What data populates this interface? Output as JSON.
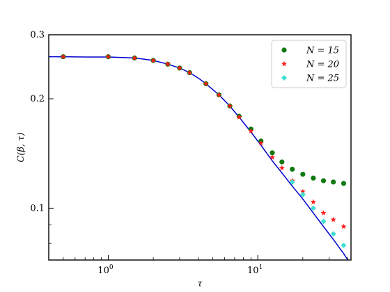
{
  "chart_data": {
    "type": "scatter",
    "xlabel": "τ",
    "ylabel": "C(β, τ)",
    "xscale": "log",
    "yscale": "log",
    "xlim": [
      0.4,
      42
    ],
    "ylim": [
      0.072,
      0.3
    ],
    "x_ticks": [
      {
        "value": 1,
        "base": "10",
        "exp": "0"
      },
      {
        "value": 10,
        "base": "10",
        "exp": "1"
      }
    ],
    "y_ticks": [
      {
        "value": 0.1,
        "label": "0.1"
      },
      {
        "value": 0.2,
        "label": "0.2"
      },
      {
        "value": 0.3,
        "label": "0.3"
      }
    ],
    "legend_position": "top-right",
    "series": [
      {
        "name": "N = 15",
        "marker": "circle",
        "color": "#107a10",
        "x": [
          0.5,
          1.0,
          1.5,
          2.0,
          2.5,
          3.0,
          3.5,
          4.5,
          5.5,
          6.5,
          7.5,
          9.0,
          10.5,
          12.5,
          14.5,
          17.0,
          20.0,
          23.5,
          27.5,
          32.0,
          37.5
        ],
        "y": [
          0.261,
          0.261,
          0.259,
          0.255,
          0.249,
          0.243,
          0.236,
          0.22,
          0.205,
          0.191,
          0.179,
          0.165,
          0.153,
          0.142,
          0.134,
          0.128,
          0.124,
          0.121,
          0.119,
          0.118,
          0.117
        ]
      },
      {
        "name": "N = 20",
        "marker": "star",
        "color": "#ff1a1a",
        "x": [
          0.5,
          1.0,
          1.5,
          2.0,
          2.5,
          3.0,
          3.5,
          4.5,
          5.5,
          6.5,
          7.5,
          9.0,
          10.5,
          12.5,
          14.5,
          17.0,
          20.0,
          23.5,
          27.5,
          32.0,
          37.5
        ],
        "y": [
          0.261,
          0.261,
          0.259,
          0.255,
          0.249,
          0.243,
          0.236,
          0.22,
          0.205,
          0.191,
          0.178,
          0.163,
          0.151,
          0.138,
          0.129,
          0.119,
          0.111,
          0.104,
          0.097,
          0.093,
          0.089
        ]
      },
      {
        "name": "N = 25",
        "marker": "diamond",
        "color": "#40e0d0",
        "x": [
          17.0,
          20.0,
          23.5,
          27.5,
          32.0,
          37.5
        ],
        "y": [
          0.118,
          0.109,
          0.1,
          0.092,
          0.085,
          0.079
        ]
      }
    ],
    "reference_curve": {
      "color": "#0000cc",
      "x": [
        0.4,
        0.5,
        0.7,
        1.0,
        1.5,
        2.0,
        2.5,
        3.0,
        3.5,
        4.0,
        4.5,
        5.5,
        6.5,
        7.5,
        9.0,
        10.5,
        12.5,
        14.5,
        17.0,
        20.0,
        23.5,
        27.5,
        32.0,
        37.5,
        40.0
      ],
      "y": [
        0.261,
        0.261,
        0.2605,
        0.2605,
        0.259,
        0.255,
        0.249,
        0.243,
        0.236,
        0.228,
        0.22,
        0.205,
        0.191,
        0.178,
        0.162,
        0.149,
        0.135,
        0.125,
        0.115,
        0.106,
        0.097,
        0.089,
        0.082,
        0.075,
        0.072
      ]
    }
  }
}
